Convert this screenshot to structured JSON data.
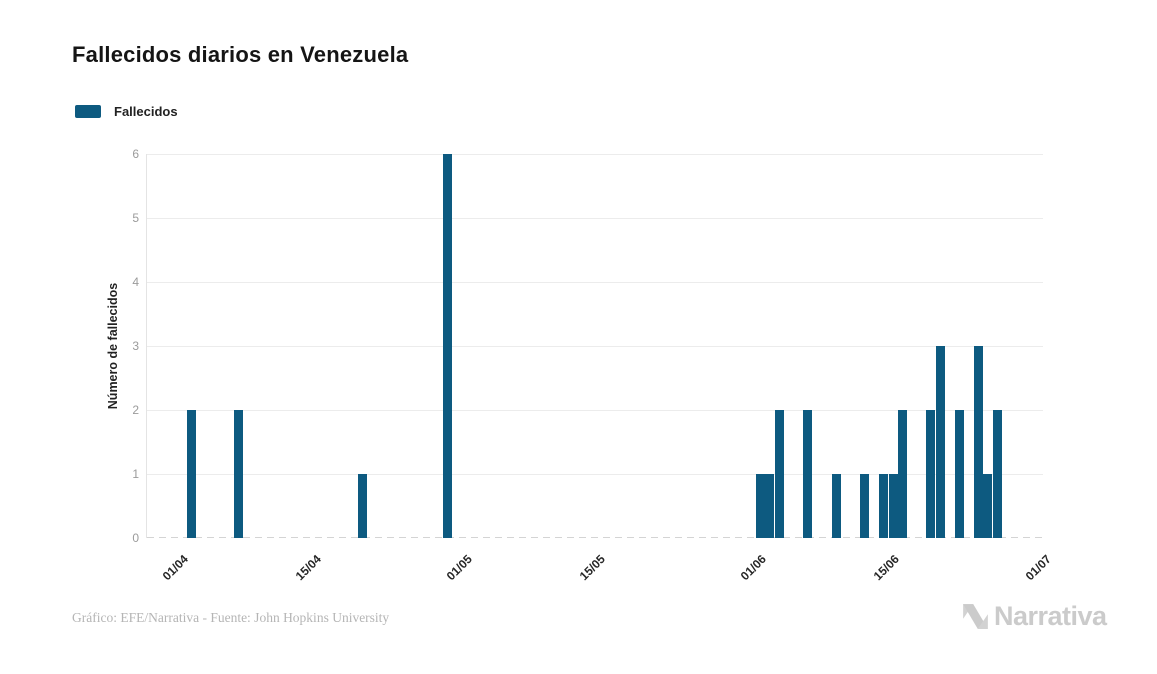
{
  "title": "Fallecidos diarios en Venezuela",
  "legend": {
    "label": "Fallecidos",
    "color": "#0d5a80"
  },
  "footer": {
    "credit": "Gráfico: EFE/Narrativa - Fuente: John Hopkins University"
  },
  "branding": {
    "logo_text": "Narrativa",
    "logo_color": "#cbcbcb"
  },
  "chart_data": {
    "type": "bar",
    "title": "Fallecidos diarios en Venezuela",
    "xlabel": "",
    "ylabel": "Número de fallecidos",
    "ylim": [
      0,
      6
    ],
    "yticks": [
      0,
      1,
      2,
      3,
      4,
      5,
      6
    ],
    "xticks": [
      "01/04",
      "15/04",
      "01/05",
      "15/05",
      "01/06",
      "15/06",
      "01/07"
    ],
    "grid": "horizontal",
    "legend_position": "top-left",
    "bar_color": "#0d5a80",
    "series": [
      {
        "name": "Fallecidos",
        "points": [
          {
            "date": "02/04",
            "value": 2
          },
          {
            "date": "07/04",
            "value": 2
          },
          {
            "date": "20/04",
            "value": 1
          },
          {
            "date": "29/04",
            "value": 6
          },
          {
            "date": "01/06",
            "value": 1
          },
          {
            "date": "02/06",
            "value": 1
          },
          {
            "date": "03/06",
            "value": 2
          },
          {
            "date": "06/06",
            "value": 2
          },
          {
            "date": "09/06",
            "value": 1
          },
          {
            "date": "12/06",
            "value": 1
          },
          {
            "date": "14/06",
            "value": 1
          },
          {
            "date": "15/06",
            "value": 1
          },
          {
            "date": "16/06",
            "value": 2
          },
          {
            "date": "19/06",
            "value": 2
          },
          {
            "date": "20/06",
            "value": 3
          },
          {
            "date": "22/06",
            "value": 2
          },
          {
            "date": "24/06",
            "value": 3
          },
          {
            "date": "25/06",
            "value": 1
          },
          {
            "date": "26/06",
            "value": 2
          }
        ]
      }
    ]
  }
}
